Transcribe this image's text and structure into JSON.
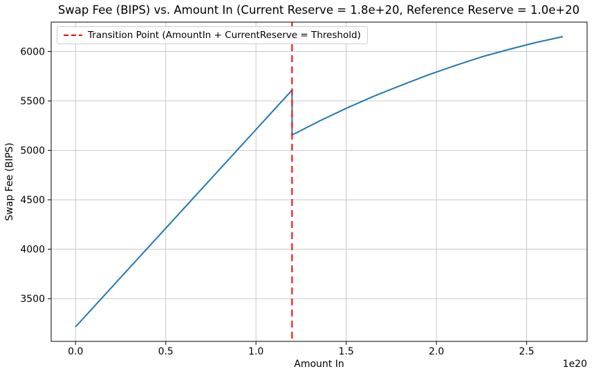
{
  "figure": {
    "background": "#ffffff"
  },
  "chart_data": {
    "type": "line",
    "title": "Swap Fee (BIPS) vs. Amount In (Current Reserve = 1.8e+20, Reference Reserve = 1.0e+20",
    "xlabel": "Amount In",
    "ylabel": "Swap Fee (BIPS)",
    "x_offset_text": "1e20",
    "x_unit_note": "x values are in units of 1e20",
    "xlim": [
      -0.135,
      2.835
    ],
    "ylim": [
      3068,
      6297
    ],
    "x_tick_values": [
      0.0,
      0.5,
      1.0,
      1.5,
      2.0,
      2.5
    ],
    "x_tick_labels": [
      "0.0",
      "0.5",
      "1.0",
      "1.5",
      "2.0",
      "2.5"
    ],
    "y_tick_values": [
      3500,
      4000,
      4500,
      5000,
      5500,
      6000
    ],
    "y_tick_labels": [
      "3500",
      "4000",
      "4500",
      "5000",
      "5500",
      "6000"
    ],
    "grid": true,
    "legend": {
      "position": "upper-left",
      "entries": [
        {
          "label": "Transition Point (AmountIn + CurrentReserve = Threshold)",
          "color": "#ff0000",
          "linestyle": "dashed"
        }
      ]
    },
    "series": [
      {
        "name": "Swap Fee (BIPS)",
        "type": "line",
        "color": "#1f77b4",
        "linestyle": "solid",
        "linewidth": 2,
        "x": [
          0.0,
          0.2,
          0.4,
          0.6,
          0.8,
          1.0,
          1.2,
          1.2,
          1.35,
          1.5,
          1.65,
          1.8,
          1.95,
          2.1,
          2.25,
          2.4,
          2.55,
          2.7
        ],
        "y": [
          3215,
          3614,
          4013,
          4412,
          4811,
          5210,
          5610,
          5155,
          5295,
          5425,
          5545,
          5655,
          5760,
          5855,
          5945,
          6020,
          6090,
          6150
        ]
      },
      {
        "name": "Transition Point (AmountIn + CurrentReserve = Threshold)",
        "type": "vline",
        "color": "#ff0000",
        "linestyle": "dashed",
        "linewidth": 2,
        "x": 1.2
      }
    ]
  },
  "colors": {
    "swap_fee_line": "#1f77b4",
    "transition_line": "#ff0000",
    "grid": "#c8c8c8",
    "spine": "#000000",
    "text": "#000000",
    "legend_border": "#cccccc"
  }
}
